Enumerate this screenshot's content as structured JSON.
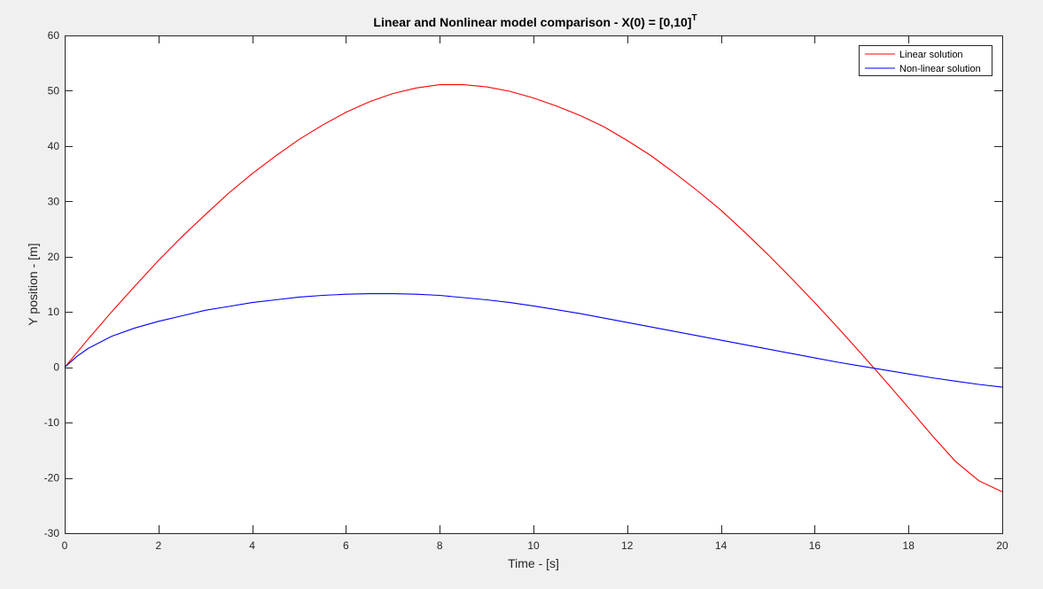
{
  "figure": {
    "background": "#f0f0f0"
  },
  "chart_data": {
    "type": "line",
    "title": "Linear and Nonlinear model comparison - X(0) = [0,10]",
    "title_superscript": "T",
    "xlabel": "Time - [s]",
    "ylabel": "Y position - [m]",
    "xlim": [
      0,
      20
    ],
    "ylim": [
      -30,
      60
    ],
    "xticks": [
      0,
      2,
      4,
      6,
      8,
      10,
      12,
      14,
      16,
      18,
      20
    ],
    "yticks": [
      -30,
      -20,
      -10,
      0,
      10,
      20,
      30,
      40,
      50,
      60
    ],
    "grid": false,
    "legend_position": "top-right",
    "series": [
      {
        "name": "Linear solution",
        "color": "#ff0000",
        "x": [
          0,
          0.5,
          1,
          1.5,
          2,
          2.5,
          3,
          3.5,
          4,
          4.5,
          5,
          5.5,
          6,
          6.5,
          7,
          7.5,
          8,
          8.5,
          9,
          9.5,
          10,
          10.5,
          11,
          11.5,
          12,
          12.5,
          13,
          13.5,
          14,
          14.5,
          15,
          15.5,
          16,
          16.5,
          17,
          17.5,
          18,
          18.5,
          19,
          19.5,
          20
        ],
        "y": [
          0,
          5.1,
          10.0,
          14.7,
          19.3,
          23.6,
          27.6,
          31.5,
          35.0,
          38.2,
          41.2,
          43.8,
          46.1,
          48.0,
          49.5,
          50.5,
          51.1,
          51.1,
          50.7,
          49.9,
          48.7,
          47.2,
          45.5,
          43.5,
          41.0,
          38.3,
          35.2,
          31.9,
          28.4,
          24.5,
          20.4,
          16.1,
          11.7,
          7.1,
          2.4,
          -2.4,
          -7.3,
          -12.3,
          -17.0,
          -20.5,
          -22.5
        ]
      },
      {
        "name": "Non-linear solution",
        "color": "#0000ff",
        "x": [
          0,
          0.25,
          0.5,
          1,
          1.5,
          2,
          2.5,
          3,
          3.5,
          4,
          4.5,
          5,
          5.5,
          6,
          6.5,
          7,
          7.5,
          8,
          8.5,
          9,
          9.5,
          10,
          10.5,
          11,
          11.5,
          12,
          12.5,
          13,
          13.5,
          14,
          14.5,
          15,
          15.5,
          16,
          16.5,
          17,
          17.5,
          18,
          18.5,
          19,
          19.5,
          20
        ],
        "y": [
          0,
          1.9,
          3.4,
          5.6,
          7.1,
          8.3,
          9.3,
          10.3,
          11.0,
          11.7,
          12.2,
          12.7,
          13.0,
          13.2,
          13.3,
          13.3,
          13.2,
          13.0,
          12.6,
          12.2,
          11.7,
          11.1,
          10.4,
          9.7,
          8.9,
          8.1,
          7.3,
          6.5,
          5.7,
          4.9,
          4.1,
          3.3,
          2.5,
          1.7,
          0.9,
          0.2,
          -0.5,
          -1.2,
          -1.9,
          -2.5,
          -3.1,
          -3.6
        ]
      }
    ]
  }
}
